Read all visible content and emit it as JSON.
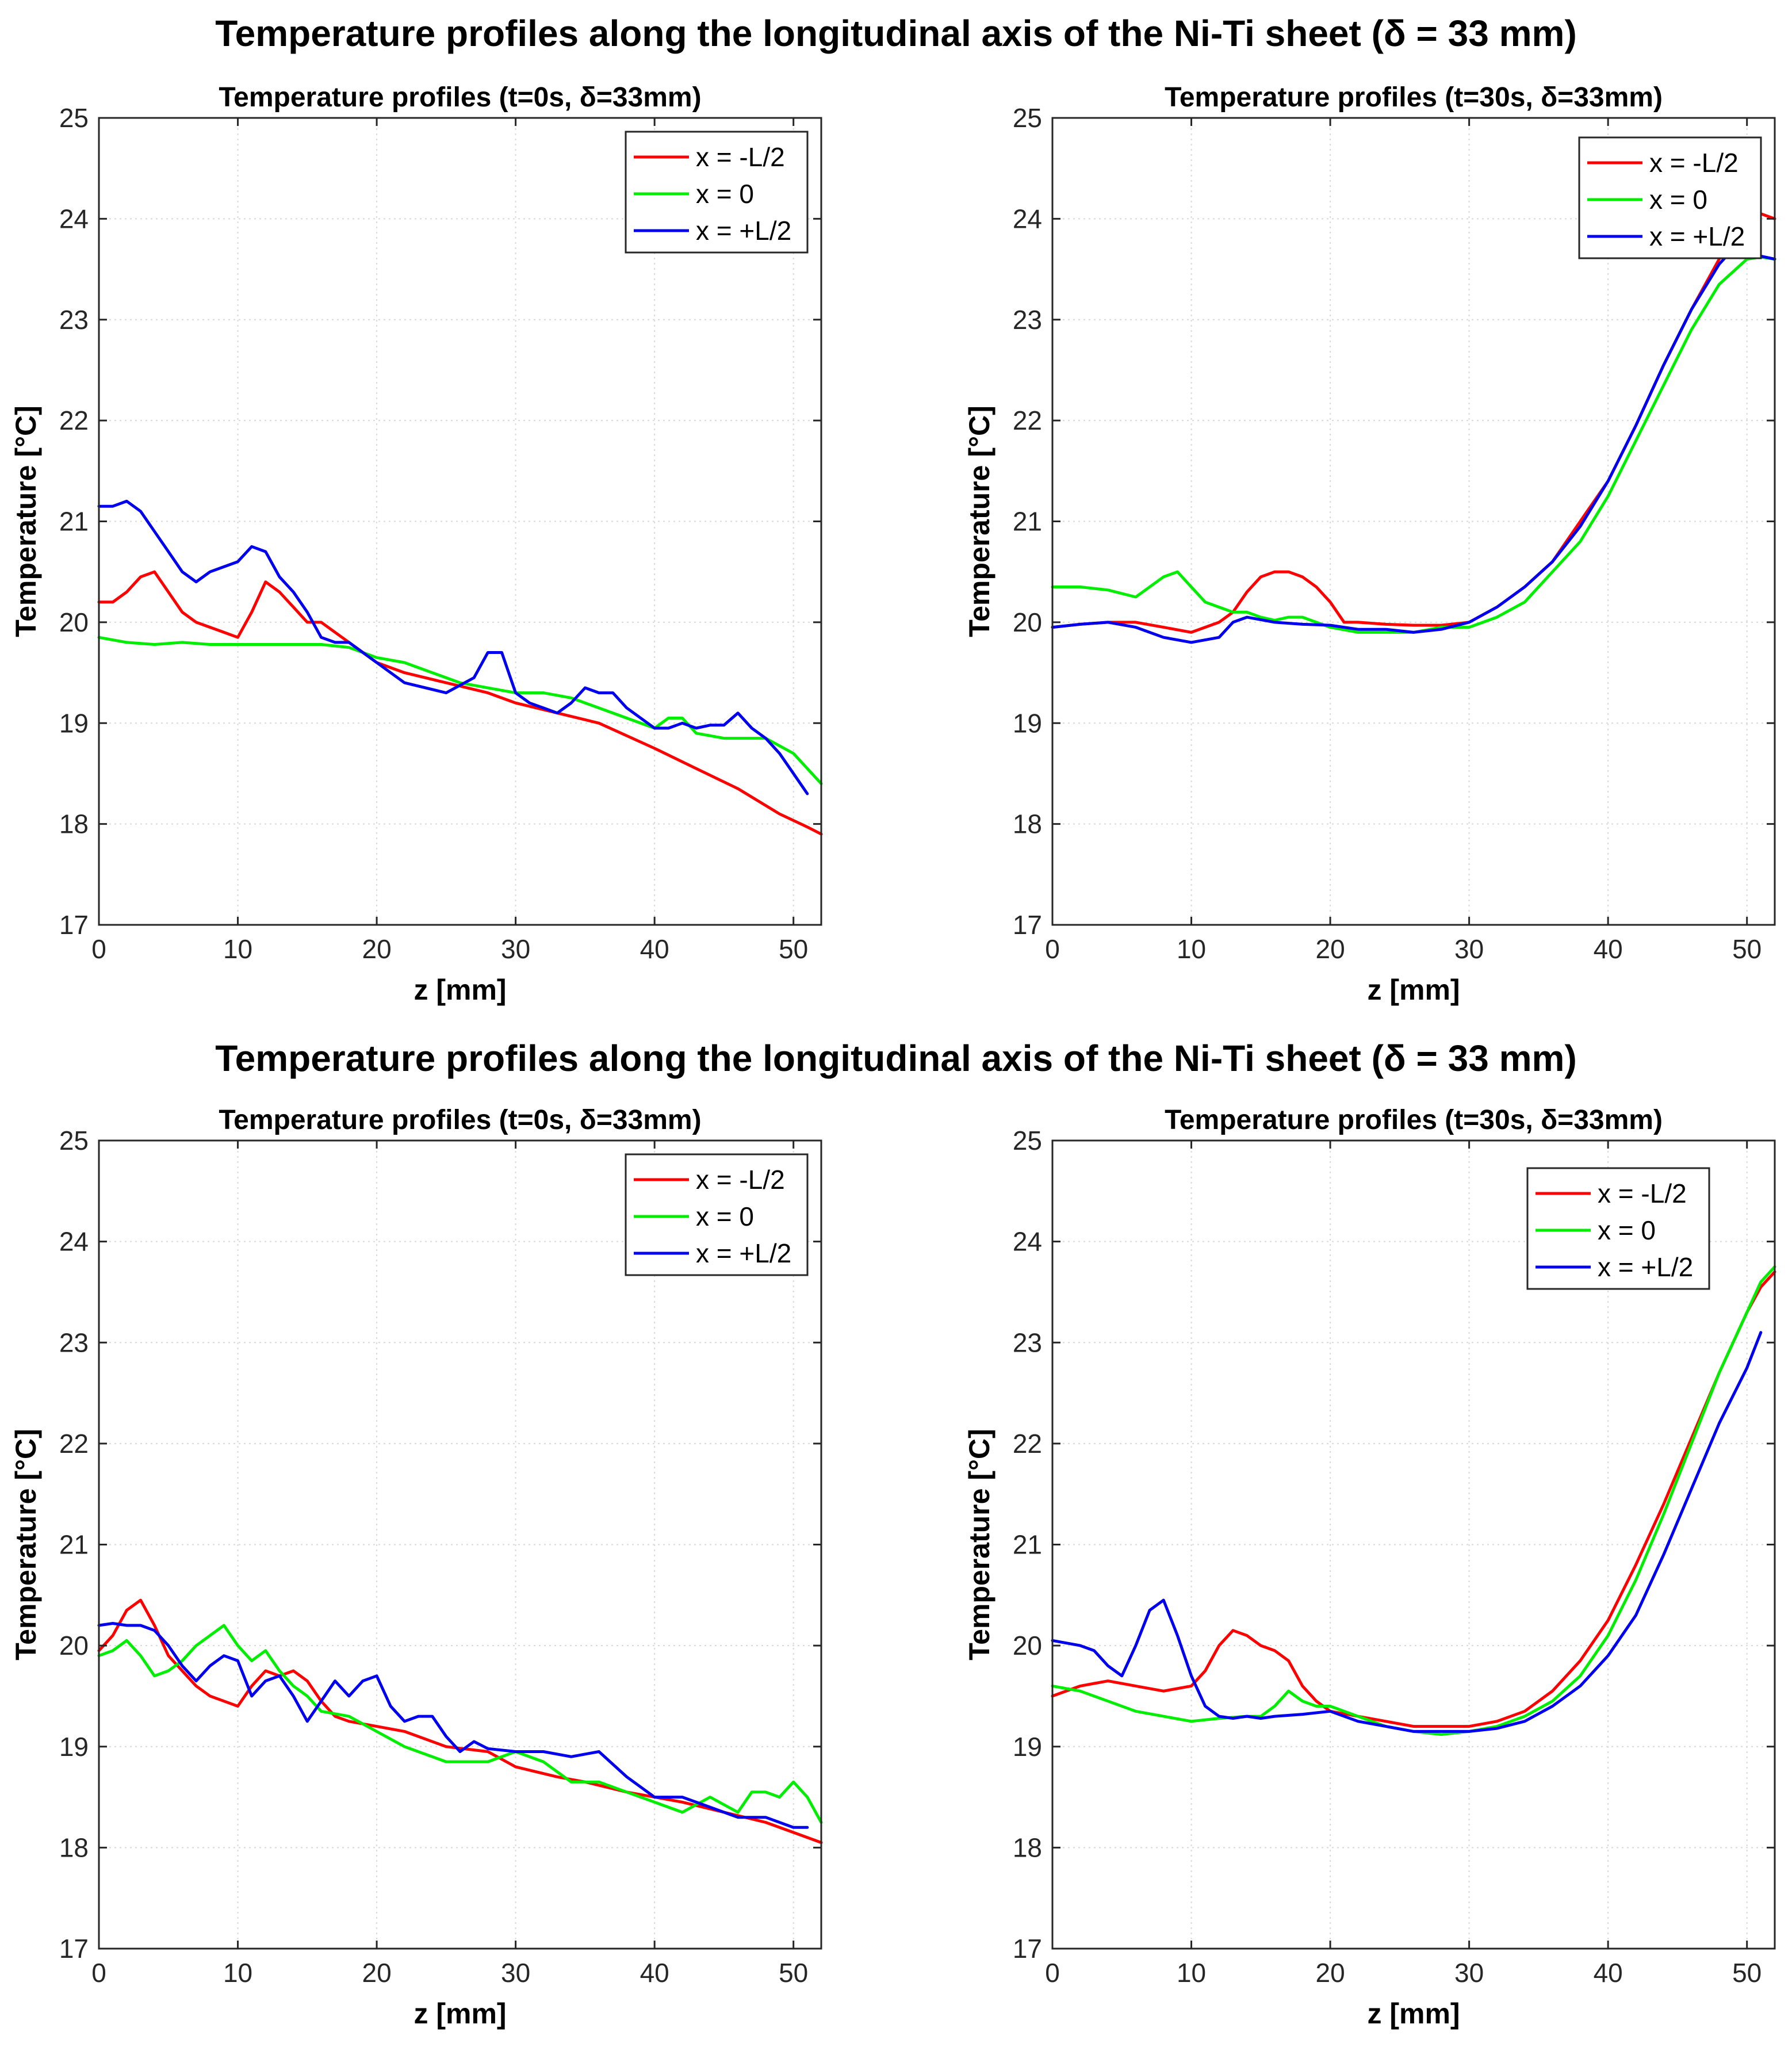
{
  "figure": {
    "row_titles": [
      "Temperature profiles along the longitudinal axis of the Ni-Ti sheet (δ = 33 mm)",
      "Temperature profiles along the longitudinal axis of the Ni-Ti sheet (δ = 33 mm)"
    ],
    "colors": {
      "red": "#ff0000",
      "green": "#00ee00",
      "blue": "#0000ee",
      "grid": "#d9d9d9",
      "axis": "#262626"
    }
  },
  "chart_data": [
    {
      "type": "line",
      "title": "Temperature profiles (t=0s, δ=33mm)",
      "xlabel": "z [mm]",
      "ylabel": "Temperature [°C]",
      "xlim": [
        0,
        52
      ],
      "ylim": [
        17,
        25
      ],
      "xticks": [
        0,
        10,
        20,
        30,
        40,
        50
      ],
      "yticks": [
        17,
        18,
        19,
        20,
        21,
        22,
        23,
        24,
        25
      ],
      "grid": true,
      "legend": "top-right",
      "series": [
        {
          "name": "x = -L/2",
          "color": "#ff0000",
          "x": [
            0,
            1,
            2,
            3,
            4,
            5,
            6,
            7,
            8,
            9,
            10,
            11,
            12,
            13,
            14,
            15,
            16,
            17,
            18,
            20,
            22,
            25,
            28,
            30,
            33,
            36,
            40,
            43,
            46,
            49,
            51,
            52
          ],
          "y": [
            20.2,
            20.2,
            20.3,
            20.45,
            20.5,
            20.3,
            20.1,
            20.0,
            19.95,
            19.9,
            19.85,
            20.1,
            20.4,
            20.3,
            20.15,
            20.0,
            20.0,
            19.9,
            19.8,
            19.6,
            19.5,
            19.4,
            19.3,
            19.2,
            19.1,
            19.0,
            18.75,
            18.55,
            18.35,
            18.1,
            17.97,
            17.9
          ]
        },
        {
          "name": "x = 0",
          "color": "#00ee00",
          "x": [
            0,
            2,
            4,
            6,
            8,
            10,
            12,
            14,
            16,
            18,
            20,
            22,
            24,
            26,
            28,
            30,
            32,
            34,
            36,
            38,
            40,
            41,
            42,
            43,
            45,
            47,
            48,
            50,
            51,
            52
          ],
          "y": [
            19.85,
            19.8,
            19.78,
            19.8,
            19.78,
            19.78,
            19.78,
            19.78,
            19.78,
            19.75,
            19.65,
            19.6,
            19.5,
            19.4,
            19.35,
            19.3,
            19.3,
            19.25,
            19.15,
            19.05,
            18.95,
            19.05,
            19.05,
            18.9,
            18.85,
            18.85,
            18.85,
            18.7,
            18.55,
            18.4
          ]
        },
        {
          "name": "x = +L/2",
          "color": "#0000ee",
          "x": [
            0,
            1,
            2,
            3,
            4,
            5,
            6,
            7,
            8,
            9,
            10,
            11,
            12,
            13,
            14,
            15,
            16,
            17,
            18,
            20,
            22,
            25,
            27,
            28,
            29,
            30,
            31,
            32,
            33,
            34,
            35,
            36,
            37,
            38,
            40,
            41,
            42,
            43,
            44,
            45,
            46,
            47,
            48,
            49,
            50,
            51
          ],
          "y": [
            21.15,
            21.15,
            21.2,
            21.1,
            20.9,
            20.7,
            20.5,
            20.4,
            20.5,
            20.55,
            20.6,
            20.75,
            20.7,
            20.45,
            20.3,
            20.1,
            19.85,
            19.8,
            19.8,
            19.6,
            19.4,
            19.3,
            19.45,
            19.7,
            19.7,
            19.3,
            19.2,
            19.15,
            19.1,
            19.2,
            19.35,
            19.3,
            19.3,
            19.15,
            18.95,
            18.95,
            19.0,
            18.95,
            18.98,
            18.98,
            19.1,
            18.95,
            18.85,
            18.7,
            18.5,
            18.3
          ]
        }
      ],
      "legend_entries": [
        "x = -L/2",
        "x = 0",
        "x = +L/2"
      ]
    },
    {
      "type": "line",
      "title": "Temperature profiles (t=30s, δ=33mm)",
      "xlabel": "z [mm]",
      "ylabel": "Temperature [°C]",
      "xlim": [
        0,
        52
      ],
      "ylim": [
        17,
        25
      ],
      "xticks": [
        0,
        10,
        20,
        30,
        40,
        50
      ],
      "yticks": [
        17,
        18,
        19,
        20,
        21,
        22,
        23,
        24,
        25
      ],
      "grid": true,
      "legend": "top-right",
      "series": [
        {
          "name": "x = -L/2",
          "color": "#ff0000",
          "x": [
            0,
            2,
            4,
            6,
            8,
            10,
            12,
            13,
            14,
            15,
            16,
            17,
            18,
            19,
            20,
            21,
            22,
            24,
            26,
            28,
            30,
            32,
            34,
            36,
            38,
            40,
            42,
            44,
            46,
            48,
            49,
            50,
            51,
            52
          ],
          "y": [
            19.95,
            19.98,
            20.0,
            20.0,
            19.95,
            19.9,
            20.0,
            20.1,
            20.3,
            20.45,
            20.5,
            20.5,
            20.45,
            20.35,
            20.2,
            20.0,
            20.0,
            19.98,
            19.97,
            19.97,
            20.0,
            20.15,
            20.35,
            20.6,
            21.0,
            21.4,
            21.95,
            22.55,
            23.1,
            23.6,
            23.85,
            24.0,
            24.05,
            24.0
          ]
        },
        {
          "name": "x = 0",
          "color": "#00ee00",
          "x": [
            0,
            2,
            4,
            6,
            7,
            8,
            9,
            10,
            11,
            12,
            13,
            14,
            15,
            16,
            17,
            18,
            19,
            20,
            22,
            24,
            26,
            28,
            30,
            32,
            34,
            36,
            38,
            40,
            42,
            44,
            46,
            48,
            50,
            51,
            52
          ],
          "y": [
            20.35,
            20.35,
            20.32,
            20.25,
            20.35,
            20.45,
            20.5,
            20.35,
            20.2,
            20.15,
            20.1,
            20.1,
            20.05,
            20.02,
            20.05,
            20.05,
            20.0,
            19.95,
            19.9,
            19.9,
            19.9,
            19.95,
            19.95,
            20.05,
            20.2,
            20.5,
            20.8,
            21.25,
            21.8,
            22.35,
            22.9,
            23.35,
            23.6,
            23.62,
            23.6
          ]
        },
        {
          "name": "x = +L/2",
          "color": "#0000ee",
          "x": [
            0,
            2,
            4,
            6,
            8,
            10,
            12,
            13,
            14,
            16,
            18,
            20,
            22,
            24,
            26,
            28,
            30,
            32,
            34,
            36,
            38,
            40,
            42,
            44,
            46,
            48,
            49,
            50,
            51,
            52
          ],
          "y": [
            19.95,
            19.98,
            20.0,
            19.95,
            19.85,
            19.8,
            19.85,
            20.0,
            20.05,
            20.0,
            19.98,
            19.97,
            19.93,
            19.93,
            19.9,
            19.93,
            20.0,
            20.15,
            20.35,
            20.6,
            20.95,
            21.4,
            21.95,
            22.55,
            23.1,
            23.55,
            23.7,
            23.68,
            23.63,
            23.6
          ]
        }
      ],
      "legend_entries": [
        "x = -L/2",
        "x = 0",
        "x = +L/2"
      ]
    },
    {
      "type": "line",
      "title": "Temperature profiles (t=0s, δ=33mm)",
      "xlabel": "z [mm]",
      "ylabel": "Temperature [°C]",
      "xlim": [
        0,
        52
      ],
      "ylim": [
        17,
        25
      ],
      "xticks": [
        0,
        10,
        20,
        30,
        40,
        50
      ],
      "yticks": [
        17,
        18,
        19,
        20,
        21,
        22,
        23,
        24,
        25
      ],
      "grid": true,
      "legend": "top-right",
      "series": [
        {
          "name": "x = -L/2",
          "color": "#ff0000",
          "x": [
            0,
            1,
            2,
            3,
            4,
            5,
            6,
            7,
            8,
            9,
            10,
            11,
            12,
            13,
            14,
            15,
            16,
            17,
            18,
            20,
            22,
            25,
            28,
            30,
            33,
            35,
            38,
            40,
            42,
            45,
            48,
            50,
            52
          ],
          "y": [
            19.95,
            20.1,
            20.35,
            20.45,
            20.2,
            19.9,
            19.75,
            19.6,
            19.5,
            19.45,
            19.4,
            19.6,
            19.75,
            19.7,
            19.75,
            19.65,
            19.45,
            19.3,
            19.25,
            19.2,
            19.15,
            19.0,
            18.95,
            18.8,
            18.7,
            18.65,
            18.55,
            18.5,
            18.45,
            18.35,
            18.25,
            18.15,
            18.05
          ]
        },
        {
          "name": "x = 0",
          "color": "#00ee00",
          "x": [
            0,
            1,
            2,
            3,
            4,
            5,
            6,
            7,
            8,
            9,
            10,
            11,
            12,
            13,
            14,
            15,
            16,
            18,
            20,
            22,
            25,
            28,
            30,
            32,
            34,
            36,
            38,
            40,
            42,
            44,
            46,
            47,
            48,
            49,
            50,
            51,
            52
          ],
          "y": [
            19.9,
            19.95,
            20.05,
            19.9,
            19.7,
            19.75,
            19.85,
            20.0,
            20.1,
            20.2,
            20.0,
            19.85,
            19.95,
            19.75,
            19.6,
            19.5,
            19.35,
            19.3,
            19.15,
            19.0,
            18.85,
            18.85,
            18.95,
            18.85,
            18.65,
            18.65,
            18.55,
            18.45,
            18.35,
            18.5,
            18.35,
            18.55,
            18.55,
            18.5,
            18.65,
            18.5,
            18.25
          ]
        },
        {
          "name": "x = +L/2",
          "color": "#0000ee",
          "x": [
            0,
            1,
            2,
            3,
            4,
            5,
            6,
            7,
            8,
            9,
            10,
            11,
            12,
            13,
            14,
            15,
            16,
            17,
            18,
            19,
            20,
            21,
            22,
            23,
            24,
            25,
            26,
            27,
            28,
            30,
            32,
            34,
            36,
            38,
            40,
            42,
            44,
            46,
            48,
            50,
            51
          ],
          "y": [
            20.2,
            20.22,
            20.2,
            20.2,
            20.15,
            20.0,
            19.8,
            19.65,
            19.8,
            19.9,
            19.85,
            19.5,
            19.65,
            19.7,
            19.5,
            19.25,
            19.45,
            19.65,
            19.5,
            19.65,
            19.7,
            19.4,
            19.25,
            19.3,
            19.3,
            19.1,
            18.95,
            19.05,
            18.98,
            18.95,
            18.95,
            18.9,
            18.95,
            18.7,
            18.5,
            18.5,
            18.4,
            18.3,
            18.3,
            18.2,
            18.2
          ]
        }
      ],
      "legend_entries": [
        "x = -L/2",
        "x = 0",
        "x = +L/2"
      ]
    },
    {
      "type": "line",
      "title": "Temperature profiles (t=30s, δ=33mm)",
      "xlabel": "z [mm]",
      "ylabel": "Temperature [°C]",
      "xlim": [
        0,
        52
      ],
      "ylim": [
        17,
        25
      ],
      "xticks": [
        0,
        10,
        20,
        30,
        40,
        50
      ],
      "yticks": [
        17,
        18,
        19,
        20,
        21,
        22,
        23,
        24,
        25
      ],
      "grid": true,
      "legend": "top-right",
      "series": [
        {
          "name": "x = -L/2",
          "color": "#ff0000",
          "x": [
            0,
            2,
            4,
            6,
            8,
            10,
            11,
            12,
            13,
            14,
            15,
            16,
            17,
            18,
            19,
            20,
            22,
            24,
            26,
            28,
            30,
            32,
            34,
            36,
            38,
            40,
            42,
            44,
            46,
            48,
            50,
            51,
            52
          ],
          "y": [
            19.5,
            19.6,
            19.65,
            19.6,
            19.55,
            19.6,
            19.75,
            20.0,
            20.15,
            20.1,
            20.0,
            19.95,
            19.85,
            19.6,
            19.45,
            19.35,
            19.3,
            19.25,
            19.2,
            19.2,
            19.2,
            19.25,
            19.35,
            19.55,
            19.85,
            20.25,
            20.8,
            21.4,
            22.05,
            22.7,
            23.3,
            23.55,
            23.7
          ]
        },
        {
          "name": "x = 0",
          "color": "#00ee00",
          "x": [
            0,
            2,
            4,
            6,
            8,
            10,
            12,
            14,
            15,
            16,
            17,
            18,
            19,
            20,
            22,
            24,
            26,
            28,
            30,
            32,
            34,
            36,
            38,
            40,
            42,
            44,
            46,
            48,
            50,
            51,
            52
          ],
          "y": [
            19.6,
            19.55,
            19.45,
            19.35,
            19.3,
            19.25,
            19.28,
            19.3,
            19.3,
            19.4,
            19.55,
            19.45,
            19.4,
            19.4,
            19.3,
            19.2,
            19.15,
            19.12,
            19.15,
            19.2,
            19.3,
            19.45,
            19.7,
            20.1,
            20.65,
            21.3,
            22.0,
            22.7,
            23.3,
            23.6,
            23.75
          ]
        },
        {
          "name": "x = +L/2",
          "color": "#0000ee",
          "x": [
            0,
            2,
            3,
            4,
            5,
            6,
            7,
            8,
            9,
            10,
            11,
            12,
            13,
            14,
            15,
            16,
            18,
            20,
            22,
            24,
            26,
            28,
            30,
            32,
            34,
            36,
            38,
            40,
            42,
            44,
            46,
            48,
            50,
            51
          ],
          "y": [
            20.05,
            20.0,
            19.95,
            19.8,
            19.7,
            20.0,
            20.35,
            20.45,
            20.1,
            19.7,
            19.4,
            19.3,
            19.28,
            19.3,
            19.28,
            19.3,
            19.32,
            19.35,
            19.25,
            19.2,
            19.15,
            19.15,
            19.15,
            19.18,
            19.25,
            19.4,
            19.6,
            19.9,
            20.3,
            20.9,
            21.55,
            22.2,
            22.75,
            23.1
          ]
        }
      ],
      "legend_entries": [
        "x = -L/2",
        "x = 0",
        "x = +L/2"
      ]
    }
  ]
}
